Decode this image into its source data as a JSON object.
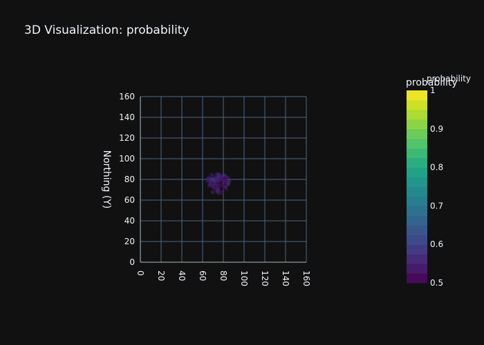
{
  "title": "3D Visualization: probability",
  "chart_data": {
    "type": "scatter",
    "title": "3D Visualization: probability",
    "xlabel": "",
    "ylabel": "Northing (Y)",
    "xlim": [
      0,
      160
    ],
    "ylim": [
      0,
      160
    ],
    "x_ticks": [
      "0",
      "20",
      "40",
      "60",
      "80",
      "100",
      "120",
      "140",
      "160"
    ],
    "y_ticks": [
      "0",
      "20",
      "40",
      "60",
      "80",
      "100",
      "120",
      "140",
      "160"
    ],
    "grid": true,
    "colorscale": "viridis",
    "colorbar": {
      "title": "probability",
      "overlay_title": "probability",
      "range": [
        0.5,
        1
      ],
      "ticks": [
        "0.5",
        "0.6",
        "0.7",
        "0.8",
        "0.9",
        "1"
      ],
      "tick_values": [
        0.5,
        0.6,
        0.7,
        0.8,
        0.9,
        1.0
      ],
      "placement": "right"
    },
    "cluster": {
      "center_x": 75,
      "center_y": 78,
      "radius_x": 11,
      "radius_y": 11,
      "value_range": [
        0.5,
        0.6
      ]
    },
    "colors": {
      "background": "#111111",
      "grid": "#506784",
      "text": "#f2f5fa"
    }
  }
}
